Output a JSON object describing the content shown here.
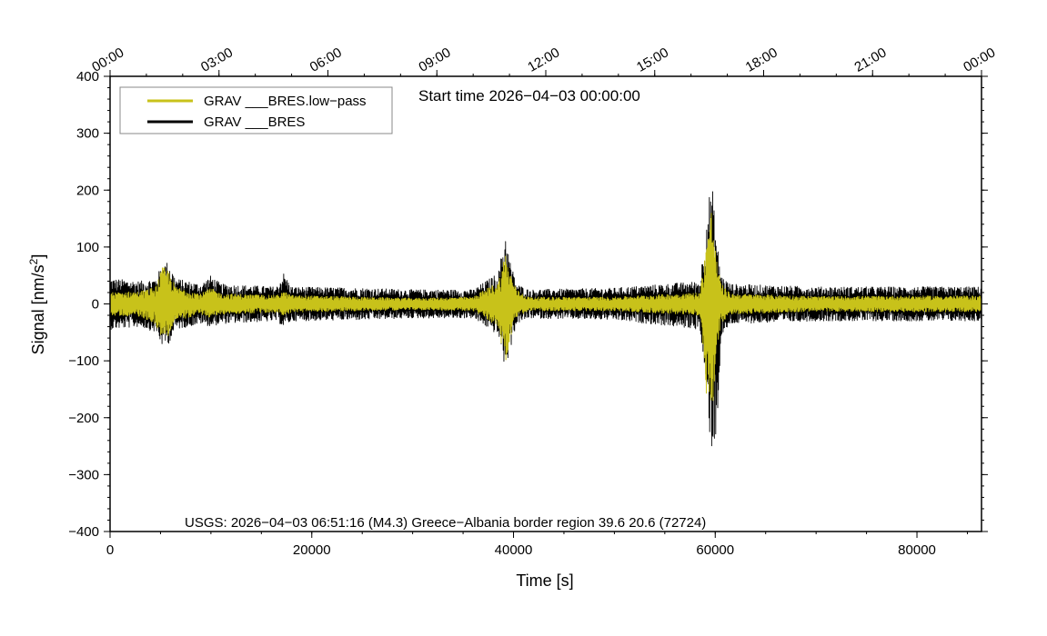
{
  "chart_data": {
    "type": "line",
    "title": "",
    "xlabel": "Time [s]",
    "ylabel": "Signal [nm/s",
    "ylabel_superscript": "2",
    "ylabel_suffix": "]",
    "xlim": [
      0,
      86400
    ],
    "ylim": [
      -400,
      400
    ],
    "x_ticks": [
      0,
      20000,
      40000,
      60000,
      80000
    ],
    "x_tick_labels": [
      "0",
      "20000",
      "40000",
      "60000",
      "80000"
    ],
    "y_ticks": [
      -400,
      -300,
      -200,
      -100,
      0,
      100,
      200,
      300,
      400
    ],
    "y_tick_labels": [
      "−400",
      "−300",
      "−200",
      "−100",
      "0",
      "100",
      "200",
      "300",
      "400"
    ],
    "top_axis_tick_labels": [
      "00:00",
      "03:00",
      "06:00",
      "09:00",
      "12:00",
      "15:00",
      "18:00",
      "21:00",
      "00:00"
    ],
    "annotation": "Start time 2026−04−03 00:00:00",
    "footer": "USGS: 2026−04−03 06:51:16 (M4.3) Greece−Albania border region 39.6 20.6 (72724)",
    "legend_position": "top-left",
    "grid": false,
    "series": [
      {
        "name": "GRAV ___BRES.low−pass",
        "color": "#c8c21a",
        "envelope": {
          "x": [
            0,
            3000,
            4500,
            5200,
            5800,
            6500,
            9000,
            10000,
            11000,
            16500,
            17200,
            18000,
            25000,
            30000,
            36000,
            38500,
            39200,
            39600,
            40300,
            41500,
            50000,
            58500,
            59300,
            59700,
            60100,
            60600,
            61500,
            70000,
            80000,
            86400
          ],
          "upper": [
            20,
            22,
            30,
            65,
            60,
            30,
            18,
            28,
            18,
            15,
            22,
            15,
            12,
            10,
            12,
            40,
            90,
            60,
            25,
            12,
            12,
            20,
            140,
            175,
            80,
            35,
            18,
            13,
            14,
            14
          ],
          "lower": [
            -20,
            -22,
            -35,
            -65,
            -55,
            -30,
            -18,
            -25,
            -18,
            -15,
            -20,
            -15,
            -12,
            -10,
            -12,
            -40,
            -115,
            -70,
            -25,
            -12,
            -12,
            -20,
            -200,
            -230,
            -90,
            -35,
            -18,
            -13,
            -14,
            -14
          ]
        }
      },
      {
        "name": "GRAV ___BRES",
        "color": "#000000",
        "envelope": {
          "x": [
            0,
            3000,
            4500,
            5200,
            5800,
            6500,
            9000,
            10000,
            11000,
            16500,
            17200,
            18000,
            25000,
            30000,
            36000,
            38500,
            39200,
            39600,
            40300,
            41500,
            50000,
            58500,
            59300,
            59700,
            60100,
            60600,
            61500,
            70000,
            80000,
            86400
          ],
          "upper": [
            45,
            40,
            45,
            70,
            75,
            45,
            35,
            50,
            35,
            30,
            55,
            30,
            28,
            25,
            25,
            55,
            128,
            80,
            35,
            25,
            28,
            40,
            185,
            210,
            120,
            50,
            35,
            30,
            30,
            30
          ],
          "lower": [
            -45,
            -40,
            -50,
            -75,
            -70,
            -45,
            -35,
            -40,
            -35,
            -30,
            -40,
            -30,
            -28,
            -25,
            -25,
            -55,
            -118,
            -85,
            -35,
            -25,
            -28,
            -45,
            -210,
            -262,
            -240,
            -60,
            -35,
            -30,
            -30,
            -30
          ]
        }
      }
    ]
  }
}
